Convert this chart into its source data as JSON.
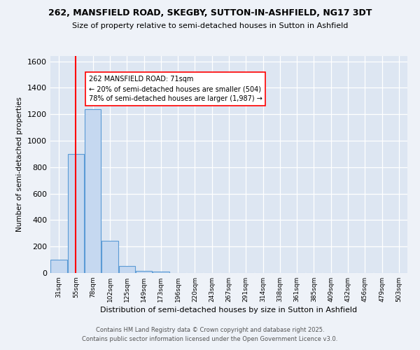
{
  "title1": "262, MANSFIELD ROAD, SKEGBY, SUTTON-IN-ASHFIELD, NG17 3DT",
  "title2": "Size of property relative to semi-detached houses in Sutton in Ashfield",
  "xlabel": "Distribution of semi-detached houses by size in Sutton in Ashfield",
  "ylabel": "Number of semi-detached properties",
  "bar_labels": [
    "31sqm",
    "55sqm",
    "78sqm",
    "102sqm",
    "125sqm",
    "149sqm",
    "173sqm",
    "196sqm",
    "220sqm",
    "243sqm",
    "267sqm",
    "291sqm",
    "314sqm",
    "338sqm",
    "361sqm",
    "385sqm",
    "409sqm",
    "432sqm",
    "456sqm",
    "479sqm",
    "503sqm"
  ],
  "bar_values": [
    100,
    900,
    1240,
    245,
    55,
    15,
    10,
    0,
    0,
    0,
    0,
    0,
    0,
    0,
    0,
    0,
    0,
    0,
    0,
    0,
    0
  ],
  "bar_color": "#c5d8f0",
  "bar_edge_color": "#5b9bd5",
  "vline_x": 1,
  "vline_color": "red",
  "annotation_title": "262 MANSFIELD ROAD: 71sqm",
  "annotation_line1": "← 20% of semi-detached houses are smaller (504)",
  "annotation_line2": "78% of semi-detached houses are larger (1,987) →",
  "annotation_box_color": "white",
  "annotation_box_edge": "red",
  "ylim": [
    0,
    1640
  ],
  "yticks": [
    0,
    200,
    400,
    600,
    800,
    1000,
    1200,
    1400,
    1600
  ],
  "footnote1": "Contains HM Land Registry data © Crown copyright and database right 2025.",
  "footnote2": "Contains public sector information licensed under the Open Government Licence v3.0.",
  "background_color": "#eef2f8",
  "grid_color": "white",
  "plot_bg": "#dde6f2"
}
